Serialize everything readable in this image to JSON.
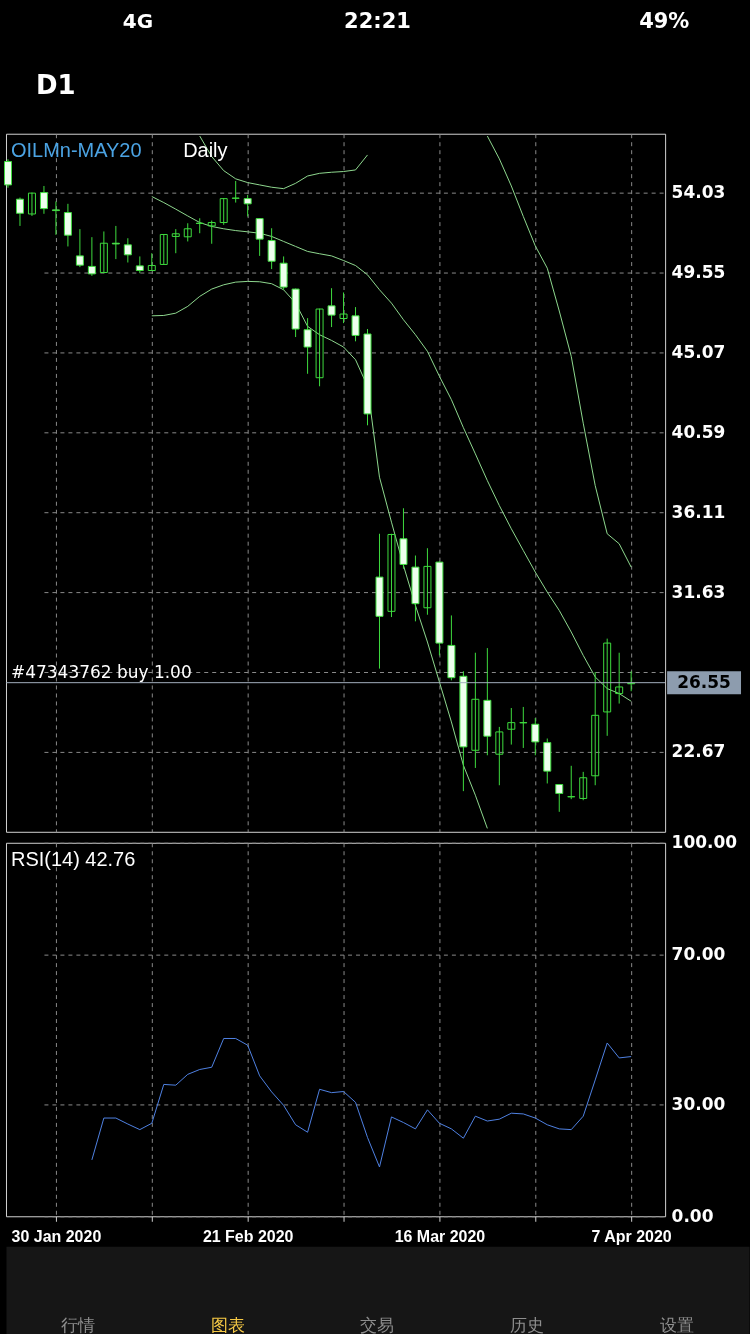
{
  "chart_data": [
    {
      "type": "other",
      "annotations": [
        "4G",
        "22:21",
        "49%",
        "D1"
      ]
    },
    {
      "type": "candlestick",
      "title": "OILMn-MAY20",
      "subtitle": "Daily",
      "color": "#3edc3e",
      "categories": [
        null,
        null,
        null,
        null,
        null,
        null,
        null,
        null,
        null,
        null,
        null,
        null,
        null,
        null,
        null,
        null,
        null,
        null,
        null,
        null,
        null,
        null,
        null,
        null,
        null,
        null,
        null,
        null,
        null,
        null,
        null,
        null,
        null,
        null,
        null,
        null,
        null,
        null,
        null,
        null,
        null,
        null,
        null,
        null,
        null,
        null,
        null,
        null,
        null,
        null,
        null,
        null,
        null
      ],
      "ohlc": [
        [
          55.77,
          55.9,
          54.3,
          54.46
        ],
        [
          53.66,
          53.75,
          52.16,
          52.87
        ],
        [
          52.83,
          54.03,
          52.72,
          54.0
        ],
        [
          54.03,
          54.4,
          52.84,
          53.13
        ],
        [
          53.06,
          53.53,
          51.66,
          53.02
        ],
        [
          52.91,
          53.4,
          51.01,
          51.64
        ],
        [
          50.48,
          51.98,
          49.85,
          49.96
        ],
        [
          49.89,
          51.53,
          49.36,
          49.47
        ],
        [
          49.55,
          51.85,
          49.51,
          51.19
        ],
        [
          51.19,
          52.16,
          50.3,
          51.15
        ],
        [
          51.1,
          51.47,
          50.11,
          50.54
        ],
        [
          49.92,
          50.45,
          49.51,
          49.66
        ],
        [
          49.66,
          50.63,
          49.64,
          49.94
        ],
        [
          50.0,
          51.7,
          49.98,
          51.68
        ],
        [
          51.57,
          51.98,
          50.63,
          51.72
        ],
        [
          51.55,
          52.31,
          51.29,
          52.0
        ],
        [
          52.31,
          52.59,
          51.75,
          52.3
        ],
        [
          52.16,
          52.46,
          51.16,
          52.35
        ],
        [
          52.35,
          53.72,
          52.22,
          53.69
        ],
        [
          53.71,
          54.68,
          53.47,
          53.72
        ],
        [
          53.69,
          53.9,
          52.69,
          53.4
        ],
        [
          52.57,
          52.6,
          50.48,
          51.42
        ],
        [
          51.34,
          52.03,
          49.74,
          50.18
        ],
        [
          50.07,
          50.45,
          48.58,
          48.73
        ],
        [
          48.62,
          48.65,
          45.93,
          46.38
        ],
        [
          46.34,
          46.99,
          43.87,
          45.37
        ],
        [
          43.65,
          47.52,
          43.17,
          47.5
        ],
        [
          47.68,
          48.67,
          46.49,
          47.16
        ],
        [
          46.97,
          48.43,
          46.71,
          47.22
        ],
        [
          47.12,
          47.61,
          45.69,
          46.02
        ],
        [
          46.1,
          46.38,
          40.98,
          41.62
        ],
        [
          32.47,
          34.9,
          27.34,
          30.27
        ],
        [
          30.55,
          34.9,
          30.23,
          34.86
        ],
        [
          34.62,
          36.33,
          32.94,
          33.18
        ],
        [
          33.03,
          33.68,
          29.99,
          30.98
        ],
        [
          30.75,
          34.09,
          30.36,
          33.07
        ],
        [
          33.31,
          33.35,
          28.08,
          28.77
        ],
        [
          28.64,
          30.32,
          26.68,
          26.83
        ],
        [
          26.91,
          27.19,
          20.47,
          22.95
        ],
        [
          22.76,
          28.23,
          21.77,
          25.62
        ],
        [
          25.56,
          28.49,
          22.48,
          23.55
        ],
        [
          22.54,
          24.07,
          20.8,
          23.79
        ],
        [
          23.94,
          25.13,
          23.08,
          24.31
        ],
        [
          24.31,
          25.19,
          22.89,
          24.3
        ],
        [
          24.22,
          24.57,
          22.48,
          23.23
        ],
        [
          23.19,
          23.42,
          20.9,
          21.59
        ],
        [
          20.84,
          20.86,
          19.31,
          20.34
        ],
        [
          20.15,
          21.89,
          20.02,
          20.16
        ],
        [
          20.06,
          21.55,
          19.96,
          21.22
        ],
        [
          21.33,
          27.15,
          20.8,
          24.72
        ],
        [
          24.91,
          29.02,
          23.57,
          28.77
        ],
        [
          25.94,
          28.23,
          25.38,
          26.31
        ],
        [
          26.49,
          27.19,
          26.07,
          26.52
        ]
      ],
      "series": [
        {
          "type": "line",
          "color": "#8fd88f",
          "values": [
            null,
            null,
            null,
            null,
            null,
            null,
            null,
            null,
            null,
            null,
            null,
            null,
            null,
            null,
            null,
            null,
            57.2,
            56.05,
            55.26,
            54.8,
            54.59,
            54.46,
            54.33,
            54.25,
            54.55,
            54.96,
            55.11,
            55.17,
            55.21,
            55.3,
            56.14,
            null,
            null,
            null,
            null,
            null,
            null,
            null,
            null,
            null,
            57.2,
            55.92,
            54.4,
            52.69,
            51.04,
            49.79,
            47.39,
            44.85,
            41.1,
            37.6,
            34.9,
            34.34,
            33.03
          ]
        },
        {
          "type": "line",
          "color": "#8fd88f",
          "values": [
            null,
            null,
            null,
            null,
            null,
            null,
            null,
            null,
            null,
            null,
            null,
            null,
            53.81,
            53.47,
            53.1,
            52.72,
            52.35,
            52.13,
            52.0,
            51.9,
            51.83,
            51.75,
            51.57,
            51.29,
            51.01,
            50.73,
            50.6,
            50.48,
            50.22,
            49.94,
            49.42,
            48.58,
            47.83,
            46.9,
            46.06,
            45.13,
            43.73,
            42.42,
            40.85,
            39.38,
            37.88,
            36.48,
            35.18,
            33.96,
            32.75,
            31.63,
            30.6,
            29.39,
            28.08,
            26.87,
            26.22,
            25.94,
            25.51
          ]
        },
        {
          "type": "line",
          "color": "#8fd88f",
          "values": [
            null,
            null,
            null,
            null,
            null,
            null,
            null,
            null,
            null,
            null,
            null,
            null,
            47.12,
            47.14,
            47.27,
            47.65,
            48.21,
            48.62,
            48.86,
            49.01,
            49.05,
            49.03,
            48.92,
            48.58,
            47.83,
            46.53,
            46.06,
            45.74,
            45.37,
            44.66,
            43.17,
            38.07,
            35.55,
            33.12,
            30.88,
            28.83,
            26.59,
            24.35,
            21.92,
            20.24,
            18.38,
            null,
            null,
            null,
            null,
            null,
            null,
            null,
            null,
            null,
            null,
            null,
            null
          ]
        }
      ],
      "ylim": [
        18.19,
        57.33
      ],
      "yticks": [
        54.03,
        49.55,
        45.07,
        40.59,
        36.11,
        31.63,
        {
          "value": 27.15,
          "label": null
        },
        22.67
      ],
      "grid": true,
      "tick_labels": "y",
      "ref_lines": [
        {
          "axis": "y",
          "value": 26.55,
          "label": "#47343762 buy 1.00",
          "color": "#a3b0be"
        }
      ],
      "annotations": [
        "26.55"
      ]
    },
    {
      "type": "line",
      "title": "RSI(14) 42.76",
      "categories": [
        null,
        null,
        null,
        null,
        "30 Jan 2020",
        null,
        null,
        null,
        null,
        null,
        null,
        null,
        null,
        null,
        null,
        null,
        null,
        null,
        null,
        null,
        "21 Feb 2020",
        null,
        null,
        null,
        null,
        null,
        null,
        null,
        null,
        null,
        null,
        null,
        null,
        null,
        null,
        null,
        "16 Mar 2020",
        null,
        null,
        null,
        null,
        null,
        null,
        null,
        null,
        null,
        null,
        null,
        null,
        null,
        null,
        null,
        "7 Apr 2020"
      ],
      "series": [
        {
          "color": "#4f82e3",
          "values": [
            null,
            null,
            null,
            null,
            null,
            null,
            null,
            15.1,
            26.3,
            26.3,
            24.7,
            23.2,
            24.9,
            35.3,
            35.1,
            38.0,
            39.3,
            39.9,
            47.6,
            47.6,
            45.8,
            37.6,
            33.3,
            29.7,
            24.5,
            22.5,
            34.0,
            33.1,
            33.4,
            30.5,
            21.1,
            13.2,
            26.6,
            25.1,
            23.4,
            28.5,
            24.9,
            23.4,
            20.9,
            26.8,
            25.5,
            26.0,
            27.6,
            27.4,
            26.3,
            24.5,
            23.4,
            23.2,
            26.8,
            36.5,
            46.4,
            42.4,
            42.76
          ]
        }
      ],
      "ylim": [
        0,
        100
      ],
      "yticks": [
        {
          "value": 100,
          "label": "100.00"
        },
        {
          "value": 70,
          "label": "70.00"
        },
        {
          "value": 30,
          "label": "30.00"
        },
        {
          "value": 0,
          "label": "0.00"
        }
      ],
      "grid": true
    },
    {
      "type": "other",
      "annotations": [
        "行情",
        "图表",
        "交易",
        "历史",
        "设置"
      ],
      "colors": [
        "#8e8e8e",
        "#f6c945",
        "#8e8e8e",
        "#8e8e8e",
        "#8e8e8e"
      ]
    }
  ]
}
